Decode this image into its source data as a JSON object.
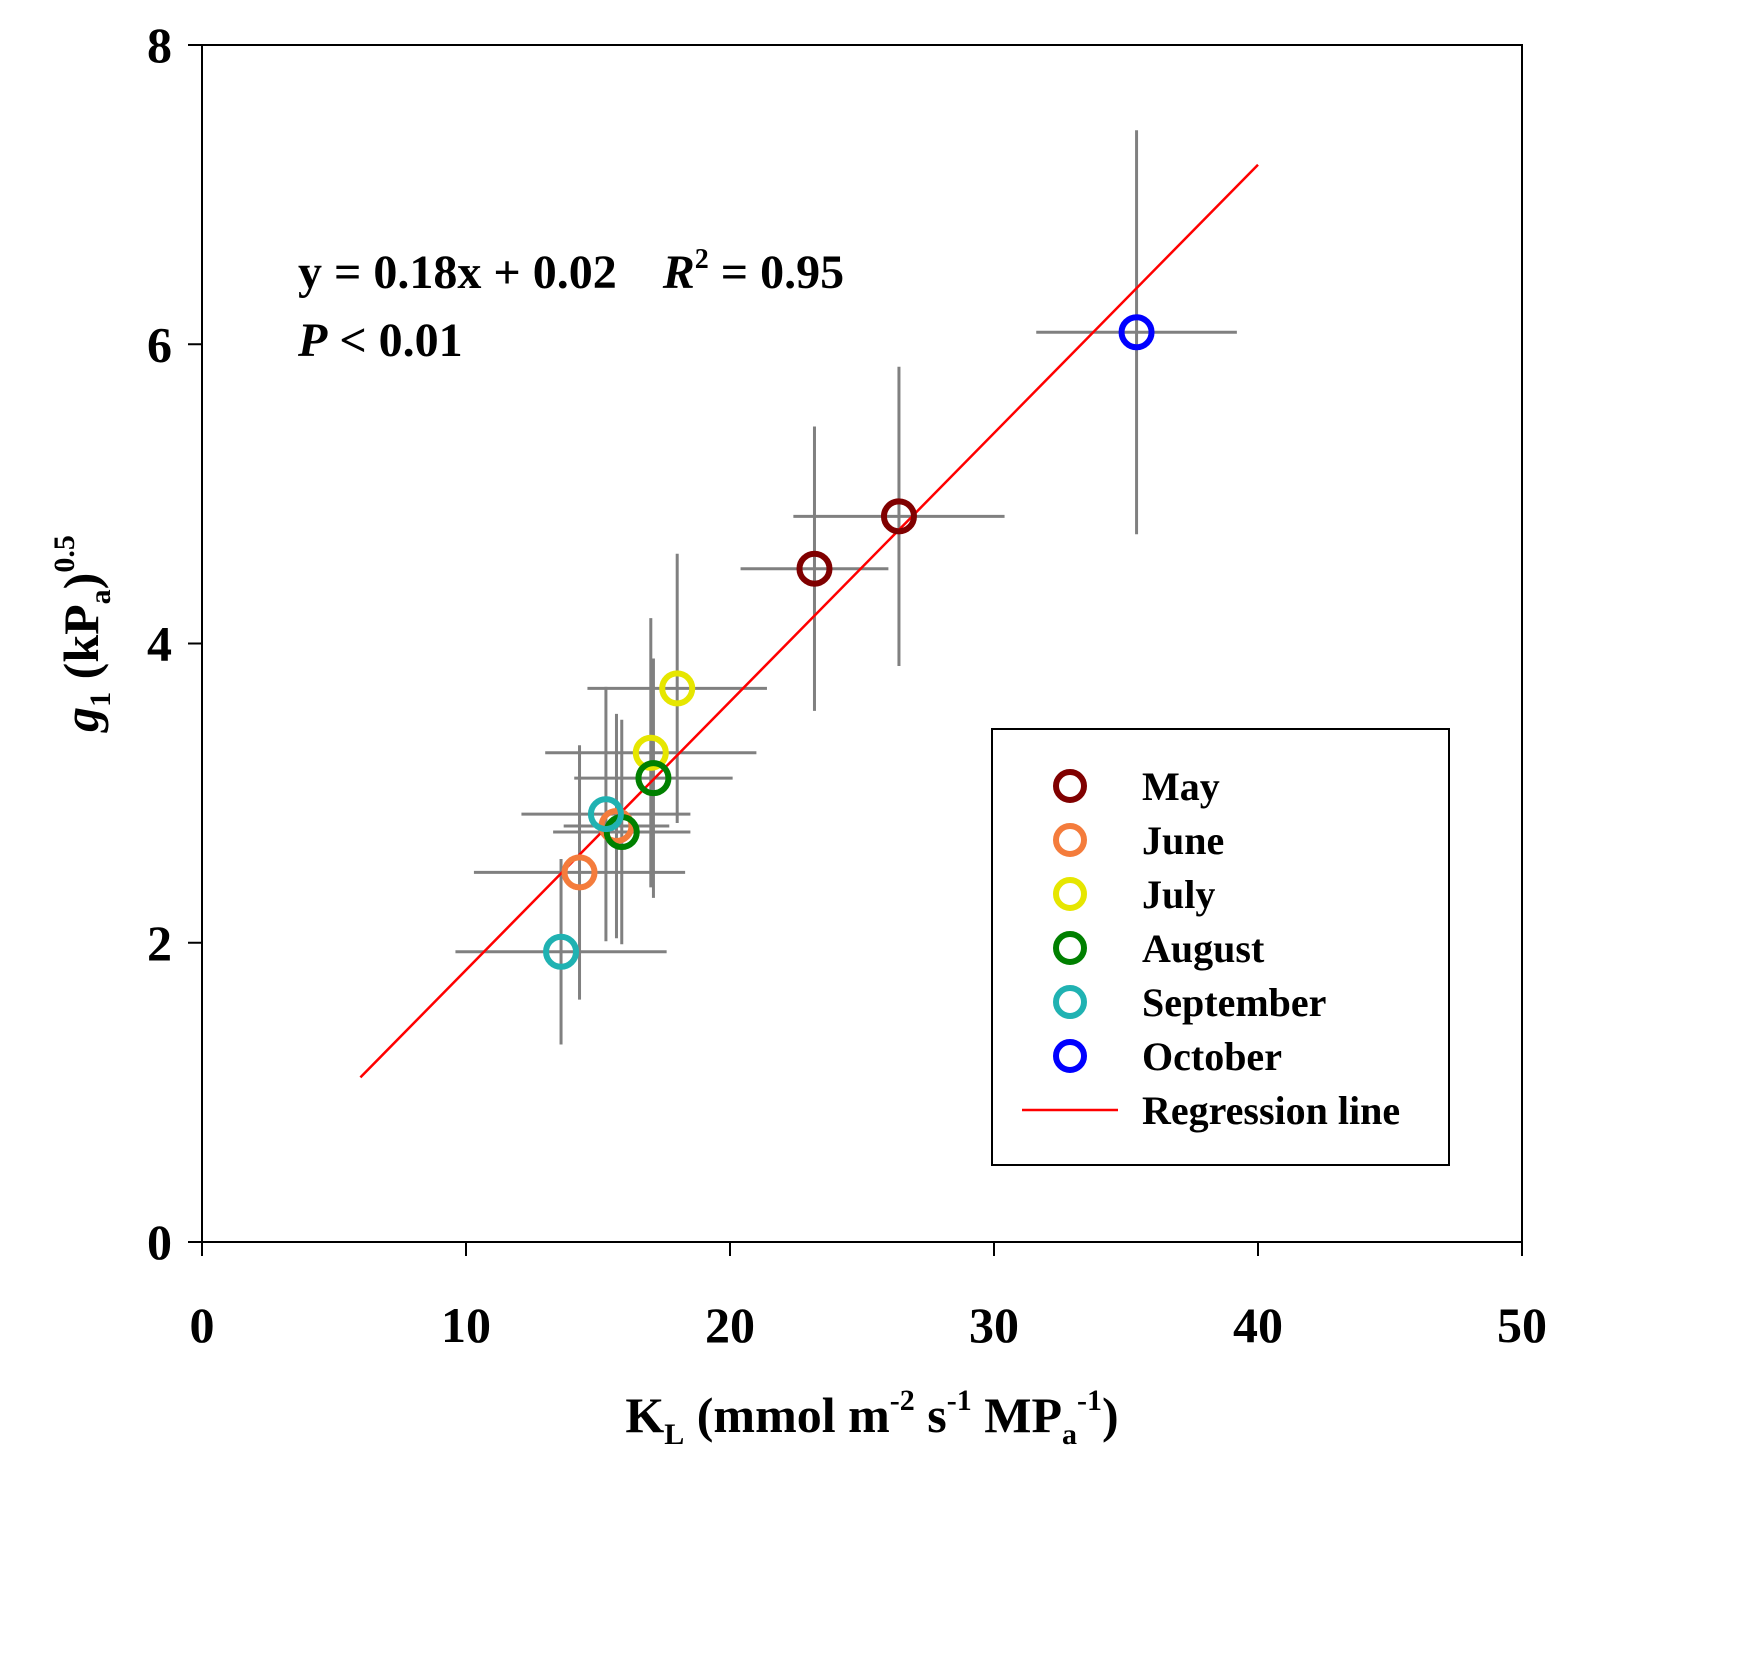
{
  "chart_data": {
    "type": "scatter",
    "xlabel": {
      "main": "K",
      "sub": "L",
      "rest1": " (mmol m",
      "sup1": "-2",
      "rest2": " s",
      "sup2": "-1",
      "rest3": " MP",
      "sub2": "a",
      "sup3": "-1",
      "rest4": ")"
    },
    "ylabel": {
      "main": "g",
      "sub": "1",
      "rest1": " (kP",
      "sub2": "a",
      "rest2": ")",
      "sup": "0.5"
    },
    "xlim": [
      0,
      50
    ],
    "ylim": [
      0,
      8
    ],
    "x_ticks": [
      0,
      10,
      20,
      30,
      40,
      50
    ],
    "y_ticks": [
      0,
      2,
      4,
      6,
      8
    ],
    "annotation": {
      "equation": "y = 0.18x + 0.02",
      "r2_label": "R",
      "r2_sup": "2",
      "r2_value": " = 0.95",
      "p_label": "P",
      "p_value": " < 0.01"
    },
    "series": [
      {
        "name": "May",
        "color": "#800000",
        "points": [
          {
            "x": 23.2,
            "y": 4.5,
            "xerr": 2.8,
            "yerr": 0.95
          },
          {
            "x": 26.4,
            "y": 4.85,
            "xerr": 4.0,
            "yerr": 1.0
          }
        ]
      },
      {
        "name": "June",
        "color": "#f47c3c",
        "points": [
          {
            "x": 14.3,
            "y": 2.47,
            "xerr": 4.0,
            "yerr": 0.85
          },
          {
            "x": 15.7,
            "y": 2.78,
            "xerr": 2.0,
            "yerr": 0.75
          }
        ]
      },
      {
        "name": "July",
        "color": "#e6e600",
        "points": [
          {
            "x": 18.0,
            "y": 3.7,
            "xerr": 3.4,
            "yerr": 0.9
          },
          {
            "x": 17.0,
            "y": 3.27,
            "xerr": 4.0,
            "yerr": 0.9
          }
        ]
      },
      {
        "name": "August",
        "color": "#008000",
        "points": [
          {
            "x": 17.1,
            "y": 3.1,
            "xerr": 3.0,
            "yerr": 0.8
          },
          {
            "x": 15.9,
            "y": 2.74,
            "xerr": 2.6,
            "yerr": 0.75
          }
        ]
      },
      {
        "name": "September",
        "color": "#20b2b2",
        "points": [
          {
            "x": 15.3,
            "y": 2.86,
            "xerr": 3.2,
            "yerr": 0.85
          },
          {
            "x": 13.6,
            "y": 1.94,
            "xerr": 4.0,
            "yerr": 0.62
          }
        ]
      },
      {
        "name": "October",
        "color": "#0000ff",
        "points": [
          {
            "x": 35.4,
            "y": 6.08,
            "xerr": 3.8,
            "yerr": 1.35
          }
        ]
      }
    ],
    "regression": {
      "name": "Regression line",
      "color": "#ff0000",
      "x_range": [
        6,
        40
      ],
      "points": [
        [
          6,
          1.1
        ],
        [
          40,
          7.2
        ]
      ]
    },
    "errorbar_color": "#808080",
    "legend_position": "bottom-right"
  }
}
